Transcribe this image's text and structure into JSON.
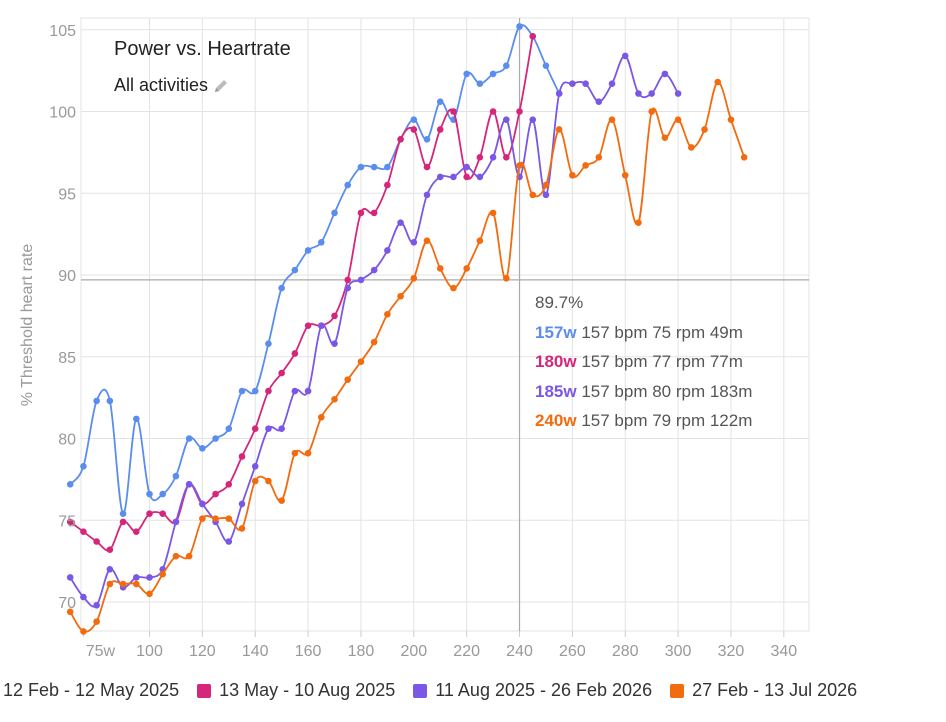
{
  "title": "Power vs. Heartrate",
  "subtitle": "All activities",
  "icons": {
    "edit": "pencil-icon"
  },
  "tooltip": {
    "value": "89.7%",
    "rows": [
      {
        "power": "157w",
        "details": " 157 bpm 75 rpm 49m",
        "color": "#5b8def"
      },
      {
        "power": "180w",
        "details": " 157 bpm 77 rpm 77m",
        "color": "#d6267b"
      },
      {
        "power": "185w",
        "details": " 157 bpm 80 rpm 183m",
        "color": "#7b57e6"
      },
      {
        "power": "240w",
        "details": " 157 bpm 79 rpm 122m",
        "color": "#f26b0f"
      }
    ]
  },
  "chart_data": {
    "type": "line",
    "title": "Power vs. Heartrate",
    "ylabel": "% Threshold heart rate",
    "xlim": [
      70,
      340
    ],
    "ylim": [
      68,
      105
    ],
    "x_ticks": [
      "75w",
      "100",
      "120",
      "140",
      "160",
      "180",
      "200",
      "220",
      "240",
      "260",
      "280",
      "300",
      "320",
      "340"
    ],
    "y_ticks": [
      "70",
      "75",
      "80",
      "85",
      "90",
      "95",
      "100",
      "105"
    ],
    "crosshair": {
      "x": 240,
      "y": 89.7
    },
    "legend_position": "bottom",
    "series": [
      {
        "name": "12 Feb - 12 May 2025",
        "color": "#5b8def",
        "points": [
          [
            70,
            77.2
          ],
          [
            75,
            78.3
          ],
          [
            80,
            82.3
          ],
          [
            85,
            82.3
          ],
          [
            90,
            75.4
          ],
          [
            95,
            81.2
          ],
          [
            100,
            76.6
          ],
          [
            105,
            76.6
          ],
          [
            110,
            77.7
          ],
          [
            115,
            80.0
          ],
          [
            120,
            79.4
          ],
          [
            125,
            80.0
          ],
          [
            130,
            80.6
          ],
          [
            135,
            82.9
          ],
          [
            140,
            82.9
          ],
          [
            145,
            85.8
          ],
          [
            150,
            89.2
          ],
          [
            155,
            90.3
          ],
          [
            160,
            91.5
          ],
          [
            165,
            92.0
          ],
          [
            170,
            93.8
          ],
          [
            175,
            95.5
          ],
          [
            180,
            96.6
          ],
          [
            185,
            96.6
          ],
          [
            190,
            96.6
          ],
          [
            195,
            98.3
          ],
          [
            200,
            99.5
          ],
          [
            205,
            98.3
          ],
          [
            210,
            100.6
          ],
          [
            215,
            99.5
          ],
          [
            220,
            102.3
          ],
          [
            225,
            101.7
          ],
          [
            230,
            102.3
          ],
          [
            235,
            102.8
          ],
          [
            240,
            105.2
          ],
          [
            245,
            104.6
          ],
          [
            250,
            102.8
          ],
          [
            255,
            101.1
          ]
        ]
      },
      {
        "name": "13 May - 10 Aug 2025",
        "color": "#d6267b",
        "points": [
          [
            70,
            74.9
          ],
          [
            75,
            74.3
          ],
          [
            80,
            73.7
          ],
          [
            85,
            73.2
          ],
          [
            90,
            74.9
          ],
          [
            95,
            74.3
          ],
          [
            100,
            75.4
          ],
          [
            105,
            75.4
          ],
          [
            110,
            74.9
          ],
          [
            115,
            77.2
          ],
          [
            120,
            76.0
          ],
          [
            125,
            76.6
          ],
          [
            130,
            77.2
          ],
          [
            135,
            78.9
          ],
          [
            140,
            80.6
          ],
          [
            145,
            82.9
          ],
          [
            150,
            84.0
          ],
          [
            155,
            85.2
          ],
          [
            160,
            86.9
          ],
          [
            165,
            86.9
          ],
          [
            170,
            87.5
          ],
          [
            175,
            89.7
          ],
          [
            180,
            93.8
          ],
          [
            185,
            93.8
          ],
          [
            190,
            95.5
          ],
          [
            195,
            98.3
          ],
          [
            200,
            98.9
          ],
          [
            205,
            96.6
          ],
          [
            210,
            98.9
          ],
          [
            215,
            100.0
          ],
          [
            220,
            96.0
          ],
          [
            225,
            97.2
          ],
          [
            230,
            100.0
          ],
          [
            235,
            97.2
          ],
          [
            240,
            100.0
          ],
          [
            245,
            104.6
          ]
        ]
      },
      {
        "name": "11 Aug 2025 - 26 Feb 2026",
        "color": "#7b57e6",
        "points": [
          [
            70,
            71.5
          ],
          [
            75,
            70.3
          ],
          [
            80,
            69.8
          ],
          [
            85,
            72.0
          ],
          [
            90,
            70.9
          ],
          [
            95,
            71.5
          ],
          [
            100,
            71.5
          ],
          [
            105,
            72.0
          ],
          [
            110,
            74.9
          ],
          [
            115,
            77.2
          ],
          [
            120,
            76.0
          ],
          [
            125,
            74.9
          ],
          [
            130,
            73.7
          ],
          [
            135,
            76.0
          ],
          [
            140,
            78.3
          ],
          [
            145,
            80.6
          ],
          [
            150,
            80.6
          ],
          [
            155,
            82.9
          ],
          [
            160,
            82.9
          ],
          [
            165,
            86.9
          ],
          [
            170,
            85.8
          ],
          [
            175,
            89.2
          ],
          [
            180,
            89.7
          ],
          [
            185,
            90.3
          ],
          [
            190,
            91.5
          ],
          [
            195,
            93.2
          ],
          [
            200,
            92.0
          ],
          [
            205,
            94.9
          ],
          [
            210,
            96.0
          ],
          [
            215,
            96.0
          ],
          [
            220,
            96.6
          ],
          [
            225,
            96.0
          ],
          [
            230,
            97.2
          ],
          [
            235,
            99.5
          ],
          [
            240,
            96.0
          ],
          [
            245,
            99.5
          ],
          [
            250,
            94.9
          ],
          [
            255,
            101.1
          ],
          [
            260,
            101.7
          ],
          [
            265,
            101.7
          ],
          [
            270,
            100.6
          ],
          [
            275,
            101.7
          ],
          [
            280,
            103.4
          ],
          [
            285,
            101.1
          ],
          [
            290,
            101.1
          ],
          [
            295,
            102.3
          ],
          [
            300,
            101.1
          ]
        ]
      },
      {
        "name": "27 Feb - 13 Jul 2026",
        "color": "#f26b0f",
        "points": [
          [
            70,
            69.4
          ],
          [
            75,
            68.2
          ],
          [
            80,
            68.8
          ],
          [
            85,
            71.1
          ],
          [
            90,
            71.1
          ],
          [
            95,
            71.1
          ],
          [
            100,
            70.5
          ],
          [
            105,
            71.7
          ],
          [
            110,
            72.8
          ],
          [
            115,
            72.8
          ],
          [
            120,
            75.1
          ],
          [
            125,
            75.1
          ],
          [
            130,
            75.1
          ],
          [
            135,
            74.5
          ],
          [
            140,
            77.4
          ],
          [
            145,
            77.4
          ],
          [
            150,
            76.2
          ],
          [
            155,
            79.1
          ],
          [
            160,
            79.1
          ],
          [
            165,
            81.3
          ],
          [
            170,
            82.4
          ],
          [
            175,
            83.6
          ],
          [
            180,
            84.7
          ],
          [
            185,
            85.9
          ],
          [
            190,
            87.6
          ],
          [
            195,
            88.7
          ],
          [
            200,
            89.8
          ],
          [
            205,
            92.1
          ],
          [
            210,
            90.4
          ],
          [
            215,
            89.2
          ],
          [
            220,
            90.4
          ],
          [
            225,
            92.1
          ],
          [
            230,
            93.8
          ],
          [
            235,
            89.8
          ],
          [
            240,
            96.7
          ],
          [
            245,
            94.9
          ],
          [
            250,
            95.5
          ],
          [
            255,
            98.9
          ],
          [
            260,
            96.1
          ],
          [
            265,
            96.7
          ],
          [
            270,
            97.2
          ],
          [
            275,
            99.5
          ],
          [
            280,
            96.1
          ],
          [
            285,
            93.2
          ],
          [
            290,
            100.0
          ],
          [
            295,
            98.4
          ],
          [
            300,
            99.5
          ],
          [
            305,
            97.8
          ],
          [
            310,
            98.9
          ],
          [
            315,
            101.8
          ],
          [
            320,
            99.5
          ],
          [
            325,
            97.2
          ]
        ]
      }
    ]
  }
}
